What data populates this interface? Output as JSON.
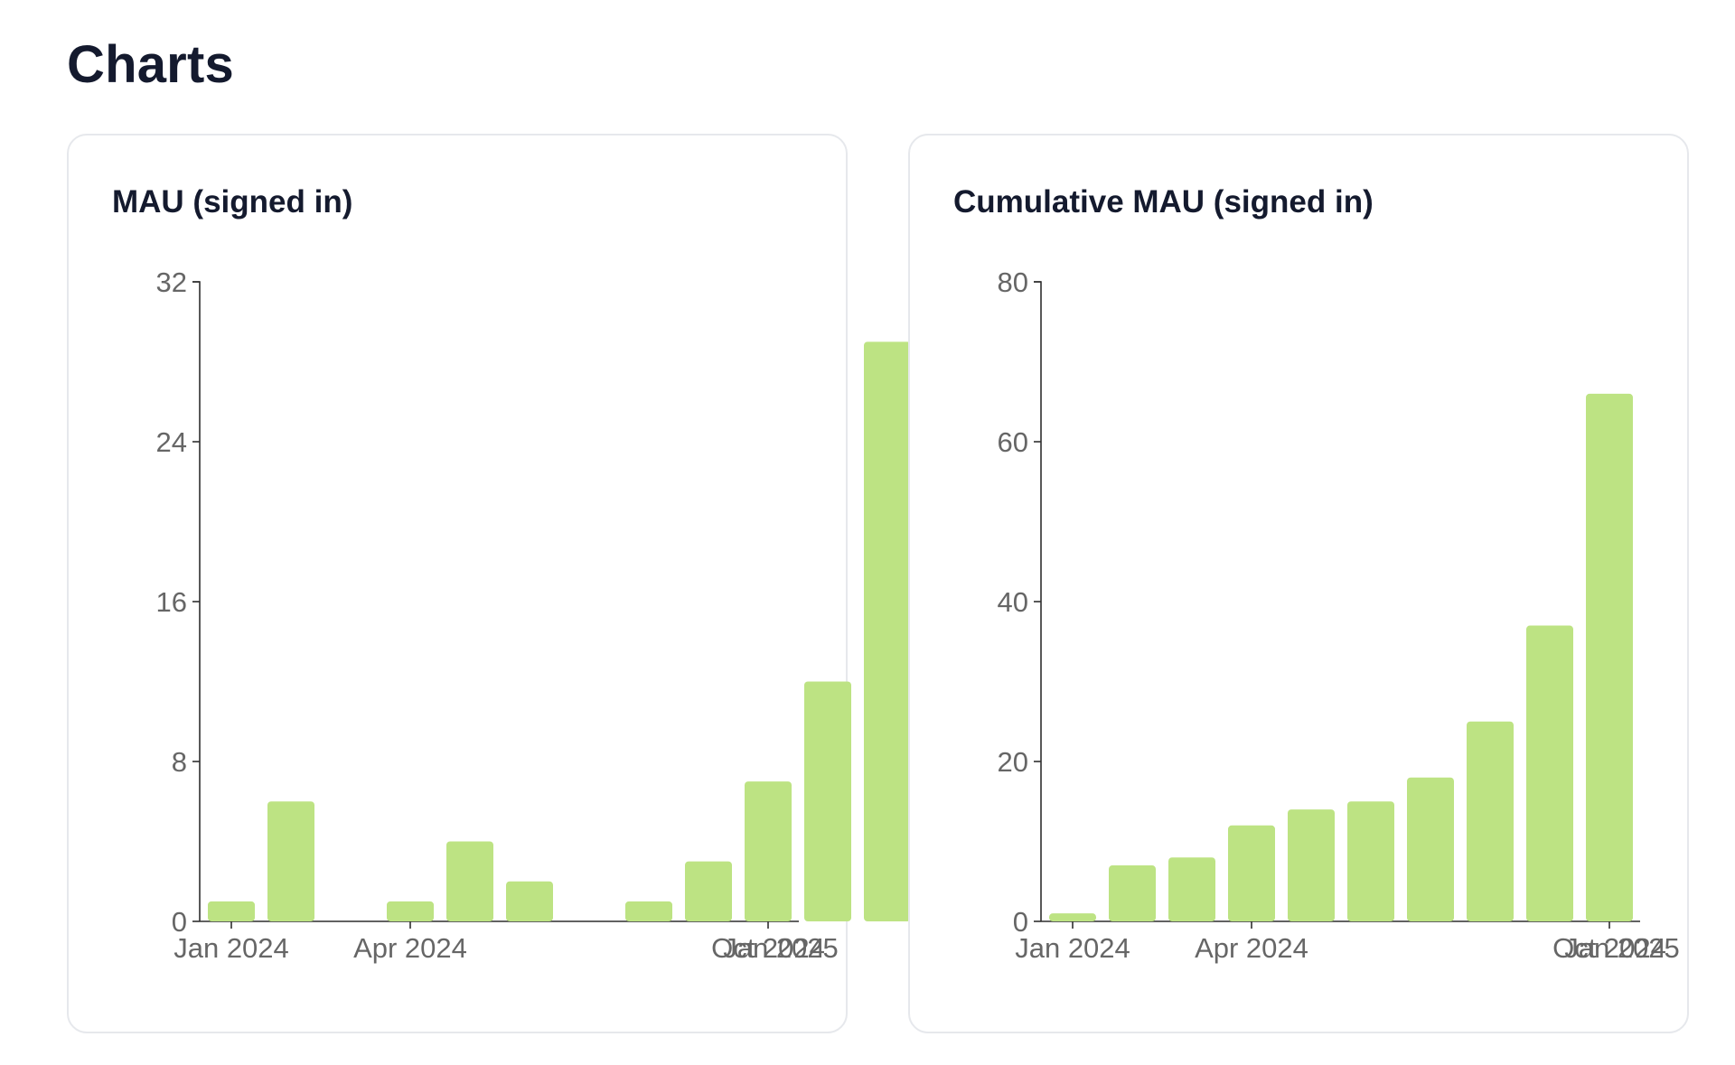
{
  "page": {
    "title": "Charts"
  },
  "charts": {
    "left_title": "MAU (signed in)",
    "right_title": "Cumulative MAU (signed in)"
  },
  "colors": {
    "bar": "#bde383",
    "axis": "#2f2f2f",
    "tick_text": "#666666",
    "title_text": "#141a2e",
    "card_border": "#e6e8ec"
  },
  "chart_data": [
    {
      "type": "bar",
      "title": "MAU (signed in)",
      "x": [
        "2024-01",
        "2024-02",
        "2024-03",
        "2024-04",
        "2024-05",
        "2024-06",
        "2024-07",
        "2024-08",
        "2024-09",
        "2024-10",
        "2024-11",
        "2024-12",
        "2025-01"
      ],
      "values": [
        1,
        6,
        null,
        1,
        4,
        2,
        null,
        1,
        3,
        7,
        12,
        29,
        null
      ],
      "x_tick_labels": [
        "Jan 2024",
        "Apr 2024",
        "Oct 2024",
        "Jan 2025"
      ],
      "x_tick_positions": [
        "2024-01",
        "2024-04",
        "2024-10",
        "2025-01"
      ],
      "y_ticks": [
        0,
        8,
        16,
        24,
        32
      ],
      "ylim": [
        0,
        32
      ],
      "xlabel": "",
      "ylabel": "",
      "grid": false,
      "legend": "none"
    },
    {
      "type": "bar",
      "title": "Cumulative MAU (signed in)",
      "x": [
        "2024-01",
        "2024-02",
        "2024-03",
        "2024-04",
        "2024-05",
        "2024-06",
        "2024-07",
        "2024-08",
        "2024-09",
        "2024-10",
        "2024-11",
        "2024-12",
        "2025-01"
      ],
      "values": [
        1,
        7,
        8,
        12,
        14,
        15,
        18,
        25,
        37,
        66,
        null,
        null,
        null
      ],
      "x_tick_labels": [
        "Jan 2024",
        "Apr 2024",
        "Oct 2024",
        "Jan 2025"
      ],
      "x_tick_positions": [
        "2024-01",
        "2024-04",
        "2024-10",
        "2025-01"
      ],
      "y_ticks": [
        0,
        20,
        40,
        60,
        80
      ],
      "ylim": [
        0,
        80
      ],
      "xlabel": "",
      "ylabel": "",
      "grid": false,
      "legend": "none"
    }
  ]
}
